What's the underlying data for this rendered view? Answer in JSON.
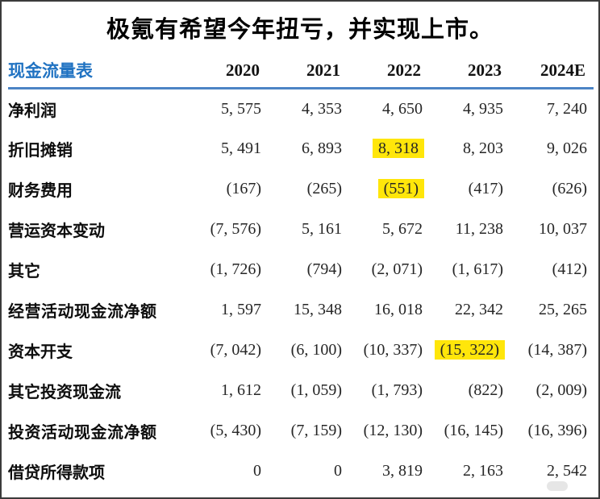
{
  "title": "极氪有希望今年扭亏，并实现上市。",
  "table": {
    "name_header": "现金流量表",
    "year_headers": [
      "2020",
      "2021",
      "2022",
      "2023",
      "2024E"
    ],
    "rows": [
      {
        "label": "净利润",
        "values": [
          "5, 575",
          "4, 353",
          "4, 650",
          "4, 935",
          "7, 240"
        ],
        "total": false,
        "highlight_col": null
      },
      {
        "label": "折旧摊销",
        "values": [
          "5, 491",
          "6, 893",
          "8, 318",
          "8, 203",
          "9, 026"
        ],
        "total": false,
        "highlight_col": 2
      },
      {
        "label": "财务费用",
        "values": [
          "(167)",
          "(265)",
          "(551)",
          "(417)",
          "(626)"
        ],
        "total": false,
        "highlight_col": 2
      },
      {
        "label": "营运资本变动",
        "values": [
          "(7, 576)",
          "5, 161",
          "5, 672",
          "11, 238",
          "10, 037"
        ],
        "total": false,
        "highlight_col": null
      },
      {
        "label": "其它",
        "values": [
          "(1, 726)",
          "(794)",
          "(2, 071)",
          "(1, 617)",
          "(412)"
        ],
        "total": false,
        "highlight_col": null
      },
      {
        "label": "经营活动现金流净额",
        "values": [
          "1, 597",
          "15, 348",
          "16, 018",
          "22, 342",
          "25, 265"
        ],
        "total": true,
        "highlight_col": null
      },
      {
        "label": "资本开支",
        "values": [
          "(7, 042)",
          "(6, 100)",
          "(10, 337)",
          "(15, 322)",
          "(14, 387)"
        ],
        "total": false,
        "highlight_col": 3
      },
      {
        "label": "其它投资现金流",
        "values": [
          "1, 612",
          "(1, 059)",
          "(1, 793)",
          "(822)",
          "(2, 009)"
        ],
        "total": false,
        "highlight_col": null
      },
      {
        "label": "投资活动现金流净额",
        "values": [
          "(5, 430)",
          "(7, 159)",
          "(12, 130)",
          "(16, 145)",
          "(16, 396)"
        ],
        "total": true,
        "highlight_col": null
      },
      {
        "label": "借贷所得款项",
        "values": [
          "0",
          "0",
          "3, 819",
          "2, 163",
          "2, 542"
        ],
        "total": false,
        "highlight_col": null
      }
    ]
  },
  "colors": {
    "header_blue": "#2173c2",
    "divider_blue": "#4c84c5",
    "highlight_yellow": "#ffe60a",
    "frame_border": "#3b3b3b"
  }
}
